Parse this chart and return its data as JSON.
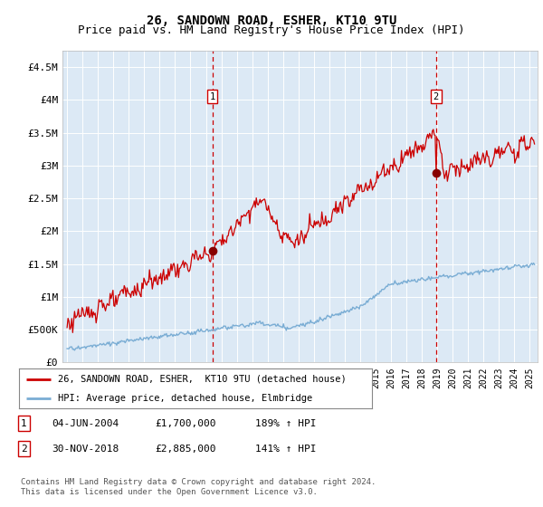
{
  "title": "26, SANDOWN ROAD, ESHER, KT10 9TU",
  "subtitle": "Price paid vs. HM Land Registry's House Price Index (HPI)",
  "ylabel_ticks": [
    "£0",
    "£500K",
    "£1M",
    "£1.5M",
    "£2M",
    "£2.5M",
    "£3M",
    "£3.5M",
    "£4M",
    "£4.5M"
  ],
  "ytick_values": [
    0,
    500000,
    1000000,
    1500000,
    2000000,
    2500000,
    3000000,
    3500000,
    4000000,
    4500000
  ],
  "ylim": [
    0,
    4750000
  ],
  "xlim_start": 1994.7,
  "xlim_end": 2025.5,
  "plot_bg": "#dce9f5",
  "grid_color": "#ffffff",
  "red_line_color": "#cc0000",
  "blue_line_color": "#7aadd4",
  "sale1_x": 2004.42,
  "sale1_y": 1700000,
  "sale2_x": 2018.92,
  "sale2_y": 2885000,
  "legend_red": "26, SANDOWN ROAD, ESHER,  KT10 9TU (detached house)",
  "legend_blue": "HPI: Average price, detached house, Elmbridge",
  "footer": "Contains HM Land Registry data © Crown copyright and database right 2024.\nThis data is licensed under the Open Government Licence v3.0.",
  "title_fontsize": 10,
  "subtitle_fontsize": 9,
  "tick_fontsize": 8
}
